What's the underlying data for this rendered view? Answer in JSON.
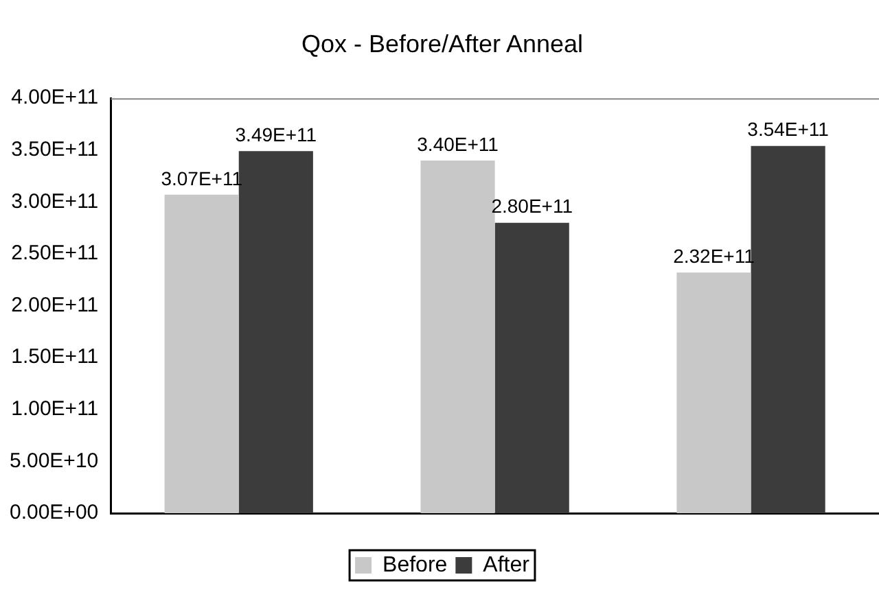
{
  "chart_data": {
    "type": "bar",
    "title": "Qox - Before/After Anneal",
    "categories": [
      null,
      null,
      null
    ],
    "series": [
      {
        "name": "Before",
        "color": "#c8c8c8",
        "values": [
          307000000000,
          340000000000,
          232000000000
        ],
        "value_labels": [
          "3.07E+11",
          "3.40E+11",
          "2.32E+11"
        ]
      },
      {
        "name": "After",
        "color": "#3c3c3c",
        "values": [
          349000000000,
          280000000000,
          354000000000
        ],
        "value_labels": [
          "3.49E+11",
          "2.80E+11",
          "3.54E+11"
        ]
      }
    ],
    "ylim": [
      0,
      400000000000
    ],
    "yticks": [
      {
        "value": 0,
        "label": "0.00E+00"
      },
      {
        "value": 50000000000,
        "label": "5.00E+10"
      },
      {
        "value": 100000000000,
        "label": "1.00E+11"
      },
      {
        "value": 150000000000,
        "label": "1.50E+11"
      },
      {
        "value": 200000000000,
        "label": "2.00E+11"
      },
      {
        "value": 250000000000,
        "label": "2.50E+11"
      },
      {
        "value": 300000000000,
        "label": "3.00E+11"
      },
      {
        "value": 350000000000,
        "label": "3.50E+11"
      },
      {
        "value": 400000000000,
        "label": "4.00E+11"
      }
    ],
    "grid": false,
    "legend": "bottom"
  }
}
